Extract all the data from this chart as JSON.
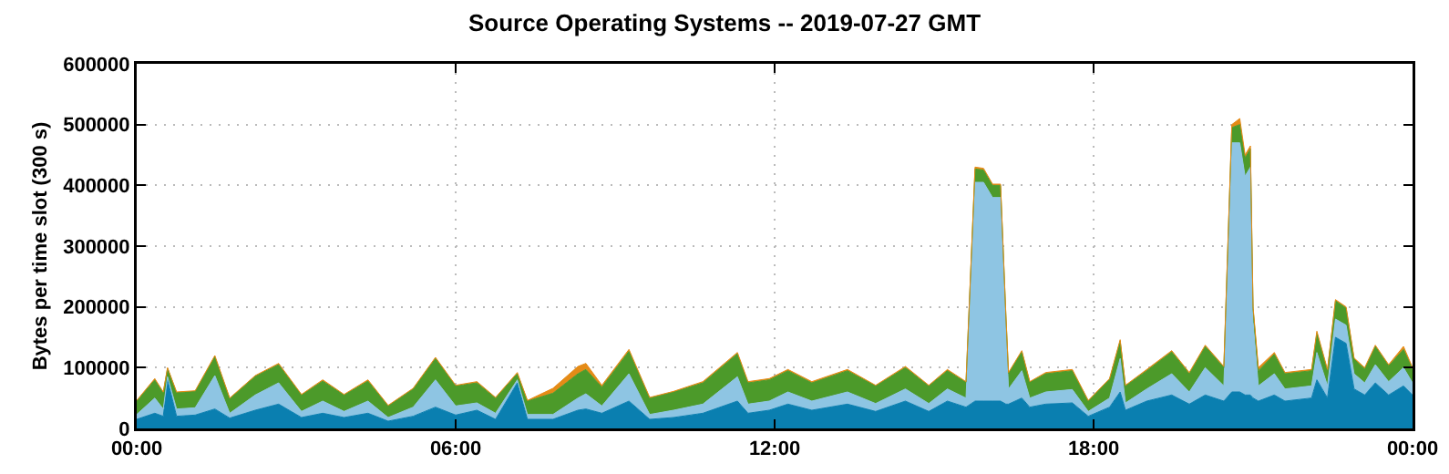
{
  "chart_data": {
    "type": "area",
    "title": "Source Operating Systems -- 2019-07-27 GMT",
    "ylabel": "Bytes per time slot (300 s)",
    "stacked": true,
    "grid": true,
    "x": [
      0,
      0.34,
      0.5,
      0.58,
      0.75,
      1.1,
      1.47,
      1.75,
      2.23,
      2.67,
      3.1,
      3.5,
      3.9,
      4.35,
      4.73,
      5.2,
      5.62,
      6.0,
      6.4,
      6.75,
      7.16,
      7.35,
      7.83,
      8.3,
      8.45,
      8.75,
      9.26,
      9.65,
      10.1,
      10.65,
      11.3,
      11.5,
      11.9,
      12.25,
      12.7,
      13.37,
      13.9,
      14.46,
      14.9,
      15.25,
      15.6,
      15.77,
      15.93,
      16.1,
      16.25,
      16.35,
      16.4,
      16.65,
      16.8,
      17.1,
      17.6,
      17.9,
      18.3,
      18.5,
      18.6,
      19.0,
      19.47,
      19.8,
      20.1,
      20.45,
      20.6,
      20.75,
      20.85,
      20.95,
      21.0,
      21.1,
      21.4,
      21.6,
      22.1,
      22.2,
      22.4,
      22.55,
      22.75,
      22.9,
      23.1,
      23.3,
      23.55,
      23.83,
      24
    ],
    "xlim": [
      0,
      24
    ],
    "xticks": [
      {
        "value": 0,
        "label": "00:00"
      },
      {
        "value": 6,
        "label": "06:00"
      },
      {
        "value": 12,
        "label": "12:00"
      },
      {
        "value": 18,
        "label": "18:00"
      },
      {
        "value": 24,
        "label": "00:00"
      }
    ],
    "ylim": [
      0,
      600000
    ],
    "yticks": [
      0,
      100000,
      200000,
      300000,
      400000,
      500000,
      600000
    ],
    "series": [
      {
        "color": "#0a7fb0",
        "values": [
          15000,
          25000,
          20000,
          80000,
          20000,
          22000,
          32000,
          17000,
          30000,
          40000,
          18000,
          25000,
          18000,
          25000,
          12000,
          20000,
          35000,
          22000,
          30000,
          15000,
          75000,
          15000,
          15000,
          30000,
          32000,
          25000,
          45000,
          15000,
          18000,
          25000,
          45000,
          25000,
          30000,
          40000,
          30000,
          40000,
          28000,
          45000,
          28000,
          45000,
          35000,
          45000,
          45000,
          45000,
          45000,
          40000,
          40000,
          50000,
          35000,
          40000,
          42000,
          20000,
          35000,
          60000,
          30000,
          45000,
          55000,
          40000,
          55000,
          45000,
          60000,
          60000,
          55000,
          55000,
          50000,
          45000,
          55000,
          45000,
          50000,
          80000,
          50000,
          150000,
          140000,
          65000,
          55000,
          75000,
          55000,
          70000,
          55000
        ]
      },
      {
        "color": "#8ec5e3",
        "values": [
          8000,
          25000,
          12000,
          5000,
          12000,
          12000,
          55000,
          8000,
          25000,
          35000,
          10000,
          20000,
          10000,
          20000,
          6000,
          15000,
          45000,
          15000,
          12000,
          10000,
          5000,
          8000,
          8000,
          20000,
          25000,
          12000,
          45000,
          8000,
          12000,
          15000,
          40000,
          15000,
          15000,
          20000,
          15000,
          20000,
          13000,
          20000,
          13000,
          20000,
          15000,
          360000,
          360000,
          335000,
          335000,
          125000,
          25000,
          45000,
          15000,
          20000,
          22000,
          8000,
          15000,
          55000,
          12000,
          20000,
          35000,
          20000,
          45000,
          25000,
          410000,
          410000,
          360000,
          375000,
          125000,
          25000,
          35000,
          20000,
          20000,
          45000,
          20000,
          30000,
          30000,
          25000,
          20000,
          30000,
          22000,
          30000,
          20000
        ]
      },
      {
        "color": "#4c9a2a",
        "values": [
          22000,
          30000,
          27000,
          14000,
          27000,
          27000,
          31000,
          24000,
          31000,
          30000,
          27000,
          33000,
          27000,
          33000,
          19000,
          30000,
          35000,
          33000,
          33000,
          25000,
          10000,
          22000,
          35000,
          40000,
          40000,
          31000,
          37000,
          27000,
          30000,
          35000,
          38000,
          35000,
          35000,
          35000,
          30000,
          35000,
          29000,
          35000,
          29000,
          30000,
          26000,
          22000,
          20000,
          20000,
          20000,
          21000,
          26000,
          31000,
          26000,
          30000,
          31000,
          17000,
          30000,
          29000,
          28000,
          30000,
          36000,
          30000,
          35000,
          30000,
          25000,
          30000,
          30000,
          30000,
          22000,
          25000,
          32000,
          25000,
          25000,
          32000,
          25000,
          30000,
          28000,
          24000,
          23000,
          30000,
          26000,
          30000,
          23000
        ]
      },
      {
        "color": "#e58b17",
        "values": [
          1000,
          2000,
          1000,
          1000,
          1000,
          1000,
          2000,
          1000,
          1000,
          2000,
          1000,
          2000,
          1000,
          2000,
          1000,
          1000,
          2000,
          1000,
          2000,
          1000,
          2000,
          1000,
          8000,
          12000,
          10000,
          3000,
          3000,
          1000,
          1000,
          2000,
          2000,
          2000,
          2000,
          2000,
          2000,
          2000,
          1000,
          2000,
          1000,
          2000,
          1000,
          3000,
          3000,
          2000,
          2000,
          2000,
          1000,
          2000,
          1000,
          2000,
          2000,
          1000,
          2000,
          2000,
          1000,
          2000,
          2000,
          2000,
          2000,
          2000,
          5000,
          10000,
          5000,
          5000,
          3000,
          5000,
          3000,
          2000,
          2000,
          3000,
          2000,
          2000,
          2000,
          2000,
          2000,
          2000,
          2000,
          5000,
          2000
        ]
      }
    ]
  }
}
